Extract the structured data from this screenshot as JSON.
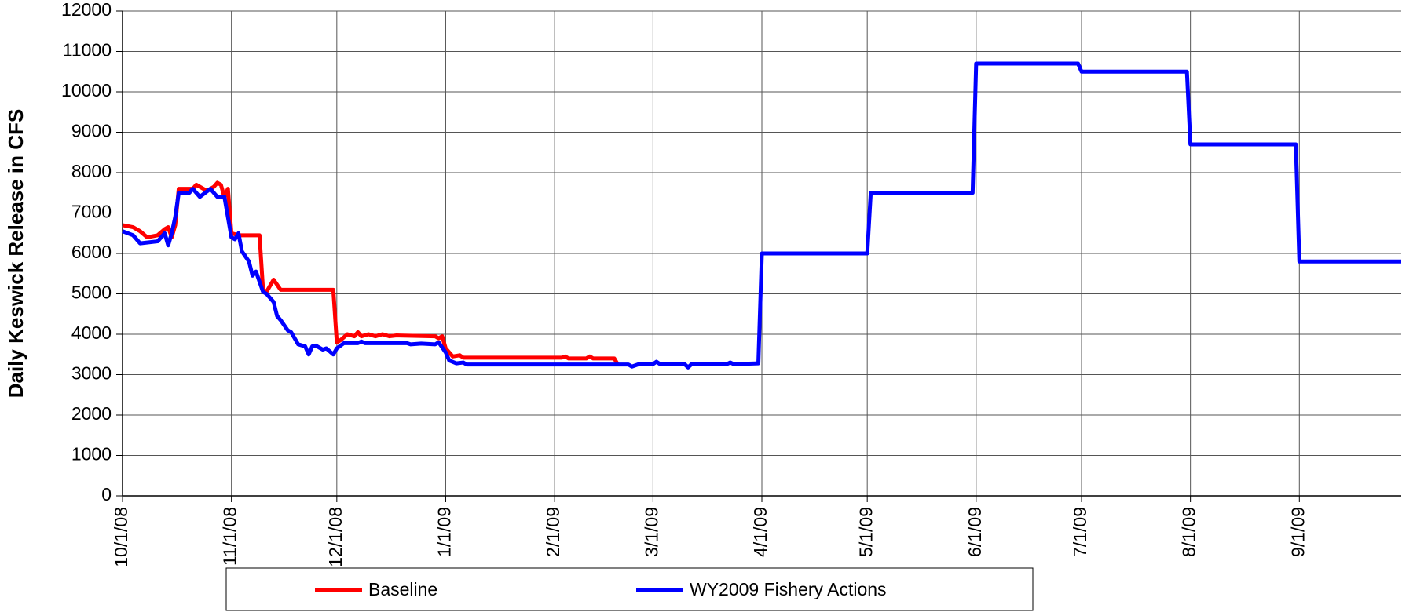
{
  "chart_data": {
    "type": "line",
    "y_label": "Daily Keswick Release in CFS",
    "xlim": [
      "10/1/08",
      "9/30/09"
    ],
    "xticks": [
      "10/1/08",
      "11/1/08",
      "12/1/08",
      "1/1/09",
      "2/1/09",
      "3/1/09",
      "4/1/09",
      "5/1/09",
      "6/1/09",
      "7/1/09",
      "8/1/09",
      "9/1/09"
    ],
    "ylim": [
      0,
      12000
    ],
    "yticks": [
      0,
      1000,
      2000,
      3000,
      4000,
      5000,
      6000,
      7000,
      8000,
      9000,
      10000,
      11000,
      12000
    ],
    "grid": true,
    "legend": "bottom",
    "series": [
      {
        "name": "Baseline",
        "color": "#ff0000",
        "x": [
          "10/1/08",
          "10/4/08",
          "10/6/08",
          "10/8/08",
          "10/11/08",
          "10/13/08",
          "10/14/08",
          "10/15/08",
          "10/16/08",
          "10/17/08",
          "10/21/08",
          "10/22/08",
          "10/24/08",
          "10/25/08",
          "10/27/08",
          "10/28/08",
          "10/29/08",
          "10/30/08",
          "10/31/08",
          "11/1/08",
          "11/3/08",
          "11/9/08",
          "11/10/08",
          "11/11/08",
          "11/13/08",
          "11/15/08",
          "11/30/08",
          "12/1/08",
          "12/2/08",
          "12/4/08",
          "12/6/08",
          "12/7/08",
          "12/8/08",
          "12/10/08",
          "12/12/08",
          "12/14/08",
          "12/16/08",
          "12/18/08",
          "12/29/08",
          "12/30/08",
          "12/31/08",
          "1/1/09",
          "1/2/09",
          "1/3/09",
          "1/5/09",
          "1/6/09",
          "2/3/09",
          "2/4/09",
          "2/5/09",
          "2/10/09",
          "2/11/09",
          "2/12/09",
          "2/18/09",
          "2/19/09"
        ],
        "values": [
          6700,
          6650,
          6550,
          6400,
          6450,
          6600,
          6650,
          6400,
          6700,
          7600,
          7600,
          7700,
          7600,
          7550,
          7650,
          7750,
          7700,
          7400,
          7600,
          6500,
          6450,
          6450,
          5100,
          5050,
          5350,
          5100,
          5100,
          3800,
          3850,
          4000,
          3950,
          4050,
          3950,
          4000,
          3950,
          4000,
          3950,
          3970,
          3950,
          3900,
          3950,
          3650,
          3550,
          3450,
          3480,
          3420,
          3420,
          3450,
          3400,
          3400,
          3450,
          3400,
          3400,
          3250
        ]
      },
      {
        "name": "WY2009 Fishery Actions",
        "color": "#0000ff",
        "x": [
          "10/1/08",
          "10/4/08",
          "10/6/08",
          "10/11/08",
          "10/13/08",
          "10/14/08",
          "10/15/08",
          "10/16/08",
          "10/17/08",
          "10/20/08",
          "10/21/08",
          "10/23/08",
          "10/26/08",
          "10/28/08",
          "10/30/08",
          "11/1/08",
          "11/2/08",
          "11/3/08",
          "11/4/08",
          "11/6/08",
          "11/7/08",
          "11/8/08",
          "11/10/08",
          "11/11/08",
          "11/13/08",
          "11/14/08",
          "11/15/08",
          "11/17/08",
          "11/18/08",
          "11/20/08",
          "11/22/08",
          "11/23/08",
          "11/24/08",
          "11/25/08",
          "11/27/08",
          "11/28/08",
          "11/30/08",
          "12/1/08",
          "12/3/08",
          "12/7/08",
          "12/8/08",
          "12/9/08",
          "12/21/08",
          "12/22/08",
          "12/25/08",
          "12/29/08",
          "12/30/08",
          "1/1/09",
          "1/2/09",
          "1/4/09",
          "1/6/09",
          "1/7/09",
          "2/22/09",
          "2/23/09",
          "2/25/09",
          "3/1/09",
          "3/2/09",
          "3/3/09",
          "3/10/09",
          "3/11/09",
          "3/12/09",
          "3/22/09",
          "3/23/09",
          "3/24/09",
          "3/31/09",
          "4/1/09",
          "5/1/09",
          "5/2/09",
          "5/31/09",
          "6/1/09",
          "6/30/09",
          "7/1/09",
          "7/31/09",
          "8/1/09",
          "8/31/09",
          "9/1/09",
          "9/30/09"
        ],
        "values": [
          6550,
          6450,
          6250,
          6300,
          6500,
          6200,
          6500,
          6900,
          7500,
          7500,
          7600,
          7400,
          7600,
          7400,
          7400,
          6400,
          6350,
          6500,
          6050,
          5800,
          5450,
          5550,
          5050,
          5000,
          4800,
          4450,
          4350,
          4100,
          4050,
          3750,
          3700,
          3500,
          3700,
          3720,
          3620,
          3650,
          3500,
          3650,
          3780,
          3780,
          3820,
          3780,
          3780,
          3750,
          3770,
          3750,
          3800,
          3550,
          3350,
          3280,
          3300,
          3250,
          3250,
          3200,
          3260,
          3260,
          3320,
          3260,
          3260,
          3180,
          3260,
          3260,
          3300,
          3260,
          3280,
          6000,
          6000,
          7500,
          7500,
          10700,
          10700,
          10500,
          10500,
          8700,
          8700,
          5800,
          5800
        ]
      }
    ]
  }
}
